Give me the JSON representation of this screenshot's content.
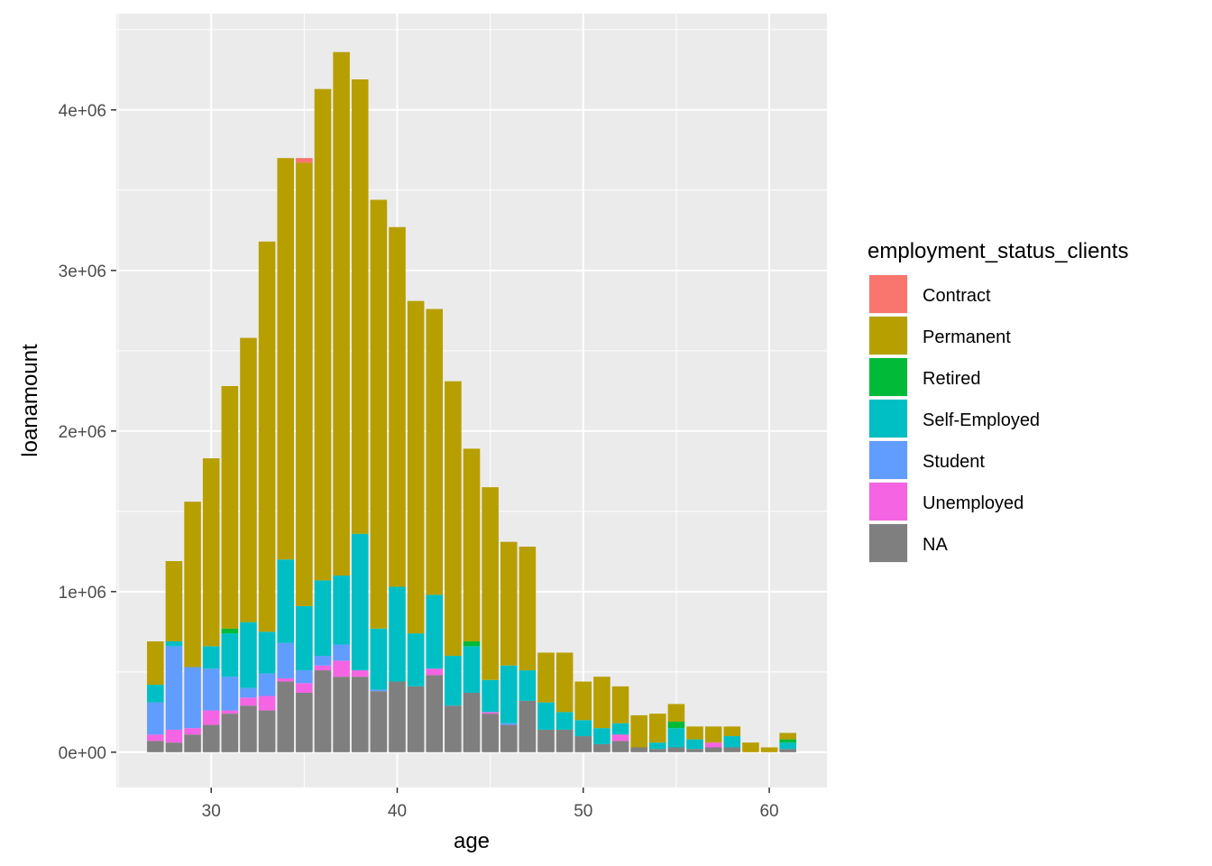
{
  "chart_data": {
    "type": "bar",
    "stacked": true,
    "xlabel": "age",
    "ylabel": "loanamount",
    "xlim": [
      24.9,
      63.1
    ],
    "ylim": [
      -220000,
      4600000
    ],
    "x_ticks": [
      30,
      40,
      50,
      60
    ],
    "x_tick_labels": [
      "30",
      "40",
      "50",
      "60"
    ],
    "y_ticks": [
      0,
      1000000,
      2000000,
      3000000,
      4000000
    ],
    "y_tick_labels": [
      "0e+00",
      "1e+06",
      "2e+06",
      "3e+06",
      "4e+06"
    ],
    "grid": true,
    "legend_title": "employment_status_clients",
    "legend_position": "right",
    "x": [
      27,
      28,
      29,
      30,
      31,
      32,
      33,
      34,
      35,
      36,
      37,
      38,
      39,
      40,
      41,
      42,
      43,
      44,
      45,
      46,
      47,
      48,
      49,
      50,
      51,
      52,
      53,
      54,
      55,
      56,
      57,
      58,
      59,
      60,
      61
    ],
    "series": [
      {
        "name": "NA",
        "color": "#7F7F7F",
        "values": [
          70000,
          60000,
          110000,
          170000,
          240000,
          290000,
          260000,
          440000,
          370000,
          510000,
          470000,
          470000,
          380000,
          440000,
          410000,
          480000,
          290000,
          370000,
          240000,
          170000,
          320000,
          140000,
          140000,
          100000,
          50000,
          70000,
          30000,
          20000,
          30000,
          20000,
          30000,
          30000,
          0,
          0,
          20000
        ]
      },
      {
        "name": "Unemployed",
        "color": "#F564E3",
        "values": [
          40000,
          80000,
          40000,
          90000,
          20000,
          50000,
          90000,
          20000,
          60000,
          30000,
          100000,
          40000,
          0,
          0,
          0,
          40000,
          0,
          0,
          10000,
          0,
          0,
          0,
          0,
          0,
          0,
          40000,
          0,
          0,
          0,
          0,
          30000,
          0,
          0,
          0,
          0
        ]
      },
      {
        "name": "Student",
        "color": "#619CFF",
        "values": [
          200000,
          520000,
          380000,
          260000,
          210000,
          60000,
          140000,
          220000,
          80000,
          60000,
          100000,
          0,
          10000,
          0,
          0,
          0,
          0,
          0,
          0,
          10000,
          0,
          0,
          0,
          0,
          0,
          0,
          0,
          0,
          0,
          0,
          0,
          0,
          0,
          0,
          0
        ]
      },
      {
        "name": "Self-Employed",
        "color": "#00BFC4",
        "values": [
          110000,
          30000,
          0,
          140000,
          270000,
          410000,
          260000,
          520000,
          400000,
          470000,
          430000,
          850000,
          380000,
          590000,
          330000,
          460000,
          310000,
          290000,
          200000,
          360000,
          190000,
          170000,
          110000,
          100000,
          100000,
          70000,
          0,
          40000,
          120000,
          60000,
          0,
          70000,
          0,
          0,
          40000
        ]
      },
      {
        "name": "Retired",
        "color": "#00BA38",
        "values": [
          0,
          0,
          0,
          0,
          30000,
          0,
          0,
          0,
          0,
          0,
          0,
          0,
          0,
          0,
          0,
          0,
          0,
          30000,
          0,
          0,
          0,
          0,
          0,
          0,
          0,
          0,
          0,
          0,
          40000,
          0,
          0,
          0,
          0,
          0,
          20000
        ]
      },
      {
        "name": "Permanent",
        "color": "#B79F00",
        "values": [
          270000,
          500000,
          1030000,
          1170000,
          1510000,
          1770000,
          2430000,
          2500000,
          2760000,
          3060000,
          3260000,
          2830000,
          2670000,
          2240000,
          2070000,
          1780000,
          1710000,
          1200000,
          1200000,
          770000,
          770000,
          310000,
          370000,
          240000,
          320000,
          230000,
          200000,
          180000,
          110000,
          80000,
          100000,
          60000,
          60000,
          30000,
          40000
        ]
      },
      {
        "name": "Contract",
        "color": "#F8766D",
        "values": [
          0,
          0,
          0,
          0,
          0,
          0,
          0,
          0,
          30000,
          0,
          0,
          0,
          0,
          0,
          0,
          0,
          0,
          0,
          0,
          0,
          0,
          0,
          0,
          0,
          0,
          0,
          0,
          0,
          0,
          0,
          0,
          0,
          0,
          0,
          0
        ]
      }
    ],
    "legend_items": [
      {
        "name": "Contract",
        "color": "#F8766D"
      },
      {
        "name": "Permanent",
        "color": "#B79F00"
      },
      {
        "name": "Retired",
        "color": "#00BA38"
      },
      {
        "name": "Self-Employed",
        "color": "#00BFC4"
      },
      {
        "name": "Student",
        "color": "#619CFF"
      },
      {
        "name": "Unemployed",
        "color": "#F564E3"
      },
      {
        "name": "NA",
        "color": "#7F7F7F"
      }
    ],
    "panel_background": "#EBEBEB",
    "grid_color": "#FFFFFF"
  }
}
